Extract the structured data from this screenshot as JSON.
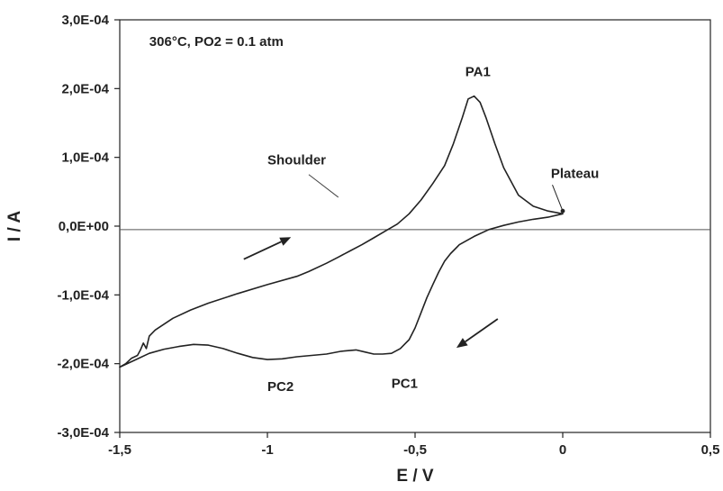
{
  "chart_data": {
    "type": "line",
    "title": "",
    "xlabel": "E / V",
    "ylabel": "I / A",
    "xlim": [
      -1.5,
      0.5
    ],
    "ylim": [
      -0.0003,
      0.0003
    ],
    "grid": false,
    "x_ticks": [
      -1.5,
      -1,
      -0.5,
      0,
      0.5
    ],
    "x_tick_labels": [
      "-1,5",
      "-1",
      "-0,5",
      "0",
      "0,5"
    ],
    "y_ticks": [
      0.0003,
      0.0002,
      0.0001,
      0,
      -0.0001,
      -0.0002,
      -0.0003
    ],
    "y_tick_labels": [
      "3,0E-04",
      "2,0E-04",
      "1,0E-04",
      "0,0E+00",
      "-1,0E-04",
      "-2,0E-04",
      "-3,0E-04"
    ],
    "zero_line_y": -5e-06,
    "series": [
      {
        "name": "",
        "color": "#222222",
        "x": [
          0.0,
          -0.05,
          -0.1,
          -0.15,
          -0.2,
          -0.23,
          -0.26,
          -0.28,
          -0.3,
          -0.32,
          -0.34,
          -0.37,
          -0.4,
          -0.44,
          -0.48,
          -0.52,
          -0.56,
          -0.6,
          -0.64,
          -0.68,
          -0.72,
          -0.76,
          -0.8,
          -0.86,
          -0.9,
          -1.0,
          -1.1,
          -1.2,
          -1.26,
          -1.32,
          -1.38,
          -1.4,
          -1.41,
          -1.42,
          -1.43,
          -1.44,
          -1.46,
          -1.48,
          -1.5,
          -1.5,
          -1.45,
          -1.4,
          -1.35,
          -1.3,
          -1.25,
          -1.2,
          -1.15,
          -1.1,
          -1.05,
          -1.0,
          -0.95,
          -0.9,
          -0.85,
          -0.8,
          -0.75,
          -0.7,
          -0.67,
          -0.64,
          -0.61,
          -0.58,
          -0.55,
          -0.52,
          -0.5,
          -0.48,
          -0.46,
          -0.44,
          -0.42,
          -0.4,
          -0.38,
          -0.35,
          -0.3,
          -0.25,
          -0.2,
          -0.15,
          -0.1,
          -0.05,
          0.0
        ],
        "y": [
          1.8e-05,
          2.2e-05,
          2.9e-05,
          4.5e-05,
          8.5e-05,
          0.00012,
          0.000158,
          0.00018,
          0.000189,
          0.000185,
          0.000158,
          0.00012,
          8.8e-05,
          6.2e-05,
          3.8e-05,
          1.8e-05,
          3e-06,
          -7e-06,
          -1.7e-05,
          -2.7e-05,
          -3.6e-05,
          -4.5e-05,
          -5.4e-05,
          -6.6e-05,
          -7.3e-05,
          -8.5e-05,
          -9.8e-05,
          -0.000112,
          -0.000122,
          -0.000134,
          -0.000151,
          -0.00016,
          -0.000178,
          -0.00017,
          -0.00018,
          -0.000188,
          -0.000192,
          -0.0002,
          -0.000205,
          -0.000205,
          -0.000195,
          -0.000185,
          -0.000179,
          -0.000175,
          -0.000172,
          -0.000173,
          -0.000178,
          -0.000185,
          -0.000191,
          -0.000194,
          -0.000193,
          -0.00019,
          -0.000188,
          -0.000186,
          -0.000182,
          -0.00018,
          -0.000183,
          -0.000186,
          -0.000186,
          -0.000185,
          -0.000178,
          -0.000165,
          -0.000148,
          -0.000126,
          -0.000104,
          -8.5e-05,
          -6.7e-05,
          -5.1e-05,
          -4e-05,
          -2.7e-05,
          -1.5e-05,
          -5e-06,
          1e-06,
          6e-06,
          1e-05,
          1.3e-05,
          1.8e-05
        ]
      }
    ],
    "annotations": [
      {
        "text": "306°C, PO2 = 0.1 atm",
        "x": -1.4,
        "y": 0.000262
      },
      {
        "text": "PA1",
        "x": -0.33,
        "y": 0.000218
      },
      {
        "text": "Shoulder",
        "x": -1.0,
        "y": 9e-05
      },
      {
        "text": "Plateau",
        "x": -0.04,
        "y": 7e-05
      },
      {
        "text": "PC2",
        "x": -1.0,
        "y": -0.00024
      },
      {
        "text": "PC1",
        "x": -0.58,
        "y": -0.000235
      }
    ],
    "leader_line": {
      "from": [
        -0.86,
        7.5e-05
      ],
      "to": [
        -0.76,
        4.2e-05
      ]
    },
    "plateau_pointer": {
      "from": [
        -0.035,
        6e-05
      ],
      "to": [
        0.0,
        2.2e-05
      ]
    },
    "arrows": [
      {
        "from": [
          -1.08,
          -4.8e-05
        ],
        "to": [
          -0.92,
          -1.6e-05
        ]
      },
      {
        "from": [
          -0.22,
          -0.000135
        ],
        "to": [
          -0.36,
          -0.000177
        ]
      }
    ]
  }
}
